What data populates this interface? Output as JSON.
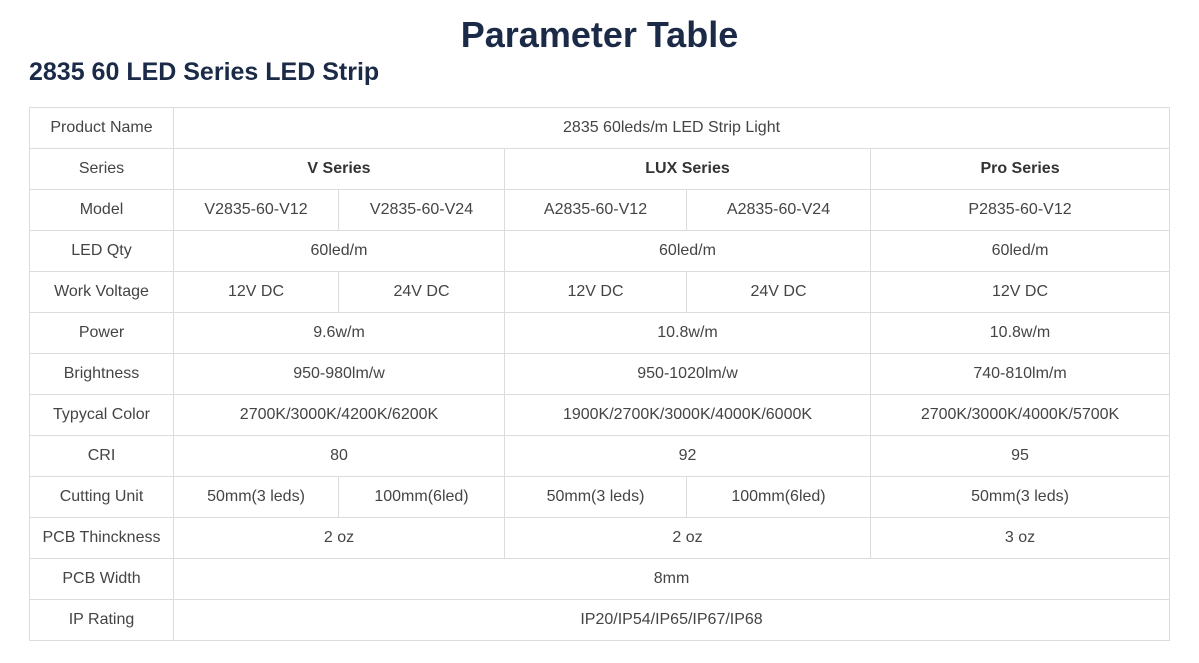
{
  "title": "Parameter Table",
  "subtitle": "2835 60 LED Series LED Strip",
  "table": {
    "rows": [
      {
        "label": "Product Name",
        "cells": [
          {
            "text": "2835 60leds/m LED Strip Light",
            "span": 5
          }
        ]
      },
      {
        "label": "Series",
        "bold": true,
        "cells": [
          {
            "text": "V Series",
            "span": 2
          },
          {
            "text": "LUX Series",
            "span": 2
          },
          {
            "text": "Pro Series",
            "span": 1
          }
        ]
      },
      {
        "label": "Model",
        "cells": [
          {
            "text": "V2835-60-V12",
            "span": 1
          },
          {
            "text": "V2835-60-V24",
            "span": 1
          },
          {
            "text": "A2835-60-V12",
            "span": 1
          },
          {
            "text": "A2835-60-V24",
            "span": 1
          },
          {
            "text": "P2835-60-V12",
            "span": 1
          }
        ]
      },
      {
        "label": "LED Qty",
        "cells": [
          {
            "text": "60led/m",
            "span": 2
          },
          {
            "text": "60led/m",
            "span": 2
          },
          {
            "text": "60led/m",
            "span": 1
          }
        ]
      },
      {
        "label": "Work Voltage",
        "cells": [
          {
            "text": "12V DC",
            "span": 1
          },
          {
            "text": "24V DC",
            "span": 1
          },
          {
            "text": "12V DC",
            "span": 1
          },
          {
            "text": "24V DC",
            "span": 1
          },
          {
            "text": "12V DC",
            "span": 1
          }
        ]
      },
      {
        "label": "Power",
        "cells": [
          {
            "text": "9.6w/m",
            "span": 2
          },
          {
            "text": "10.8w/m",
            "span": 2
          },
          {
            "text": "10.8w/m",
            "span": 1
          }
        ]
      },
      {
        "label": "Brightness",
        "cells": [
          {
            "text": "950-980lm/w",
            "span": 2
          },
          {
            "text": "950-1020lm/w",
            "span": 2
          },
          {
            "text": "740-810lm/m",
            "span": 1
          }
        ]
      },
      {
        "label": "Typycal Color",
        "cells": [
          {
            "text": "2700K/3000K/4200K/6200K",
            "span": 2
          },
          {
            "text": "1900K/2700K/3000K/4000K/6000K",
            "span": 2
          },
          {
            "text": "2700K/3000K/4000K/5700K",
            "span": 1
          }
        ]
      },
      {
        "label": "CRI",
        "cells": [
          {
            "text": "80",
            "span": 2
          },
          {
            "text": "92",
            "span": 2
          },
          {
            "text": "95",
            "span": 1
          }
        ]
      },
      {
        "label": "Cutting Unit",
        "cells": [
          {
            "text": "50mm(3 leds)",
            "span": 1
          },
          {
            "text": "100mm(6led)",
            "span": 1
          },
          {
            "text": "50mm(3 leds)",
            "span": 1
          },
          {
            "text": "100mm(6led)",
            "span": 1
          },
          {
            "text": "50mm(3 leds)",
            "span": 1
          }
        ]
      },
      {
        "label": "PCB Thinckness",
        "cells": [
          {
            "text": "2 oz",
            "span": 2
          },
          {
            "text": "2 oz",
            "span": 2
          },
          {
            "text": "3 oz",
            "span": 1
          }
        ]
      },
      {
        "label": "PCB Width",
        "cells": [
          {
            "text": "8mm",
            "span": 5
          }
        ]
      },
      {
        "label": "IP Rating",
        "cells": [
          {
            "text": "IP20/IP54/IP65/IP67/IP68",
            "span": 5
          }
        ]
      }
    ]
  }
}
